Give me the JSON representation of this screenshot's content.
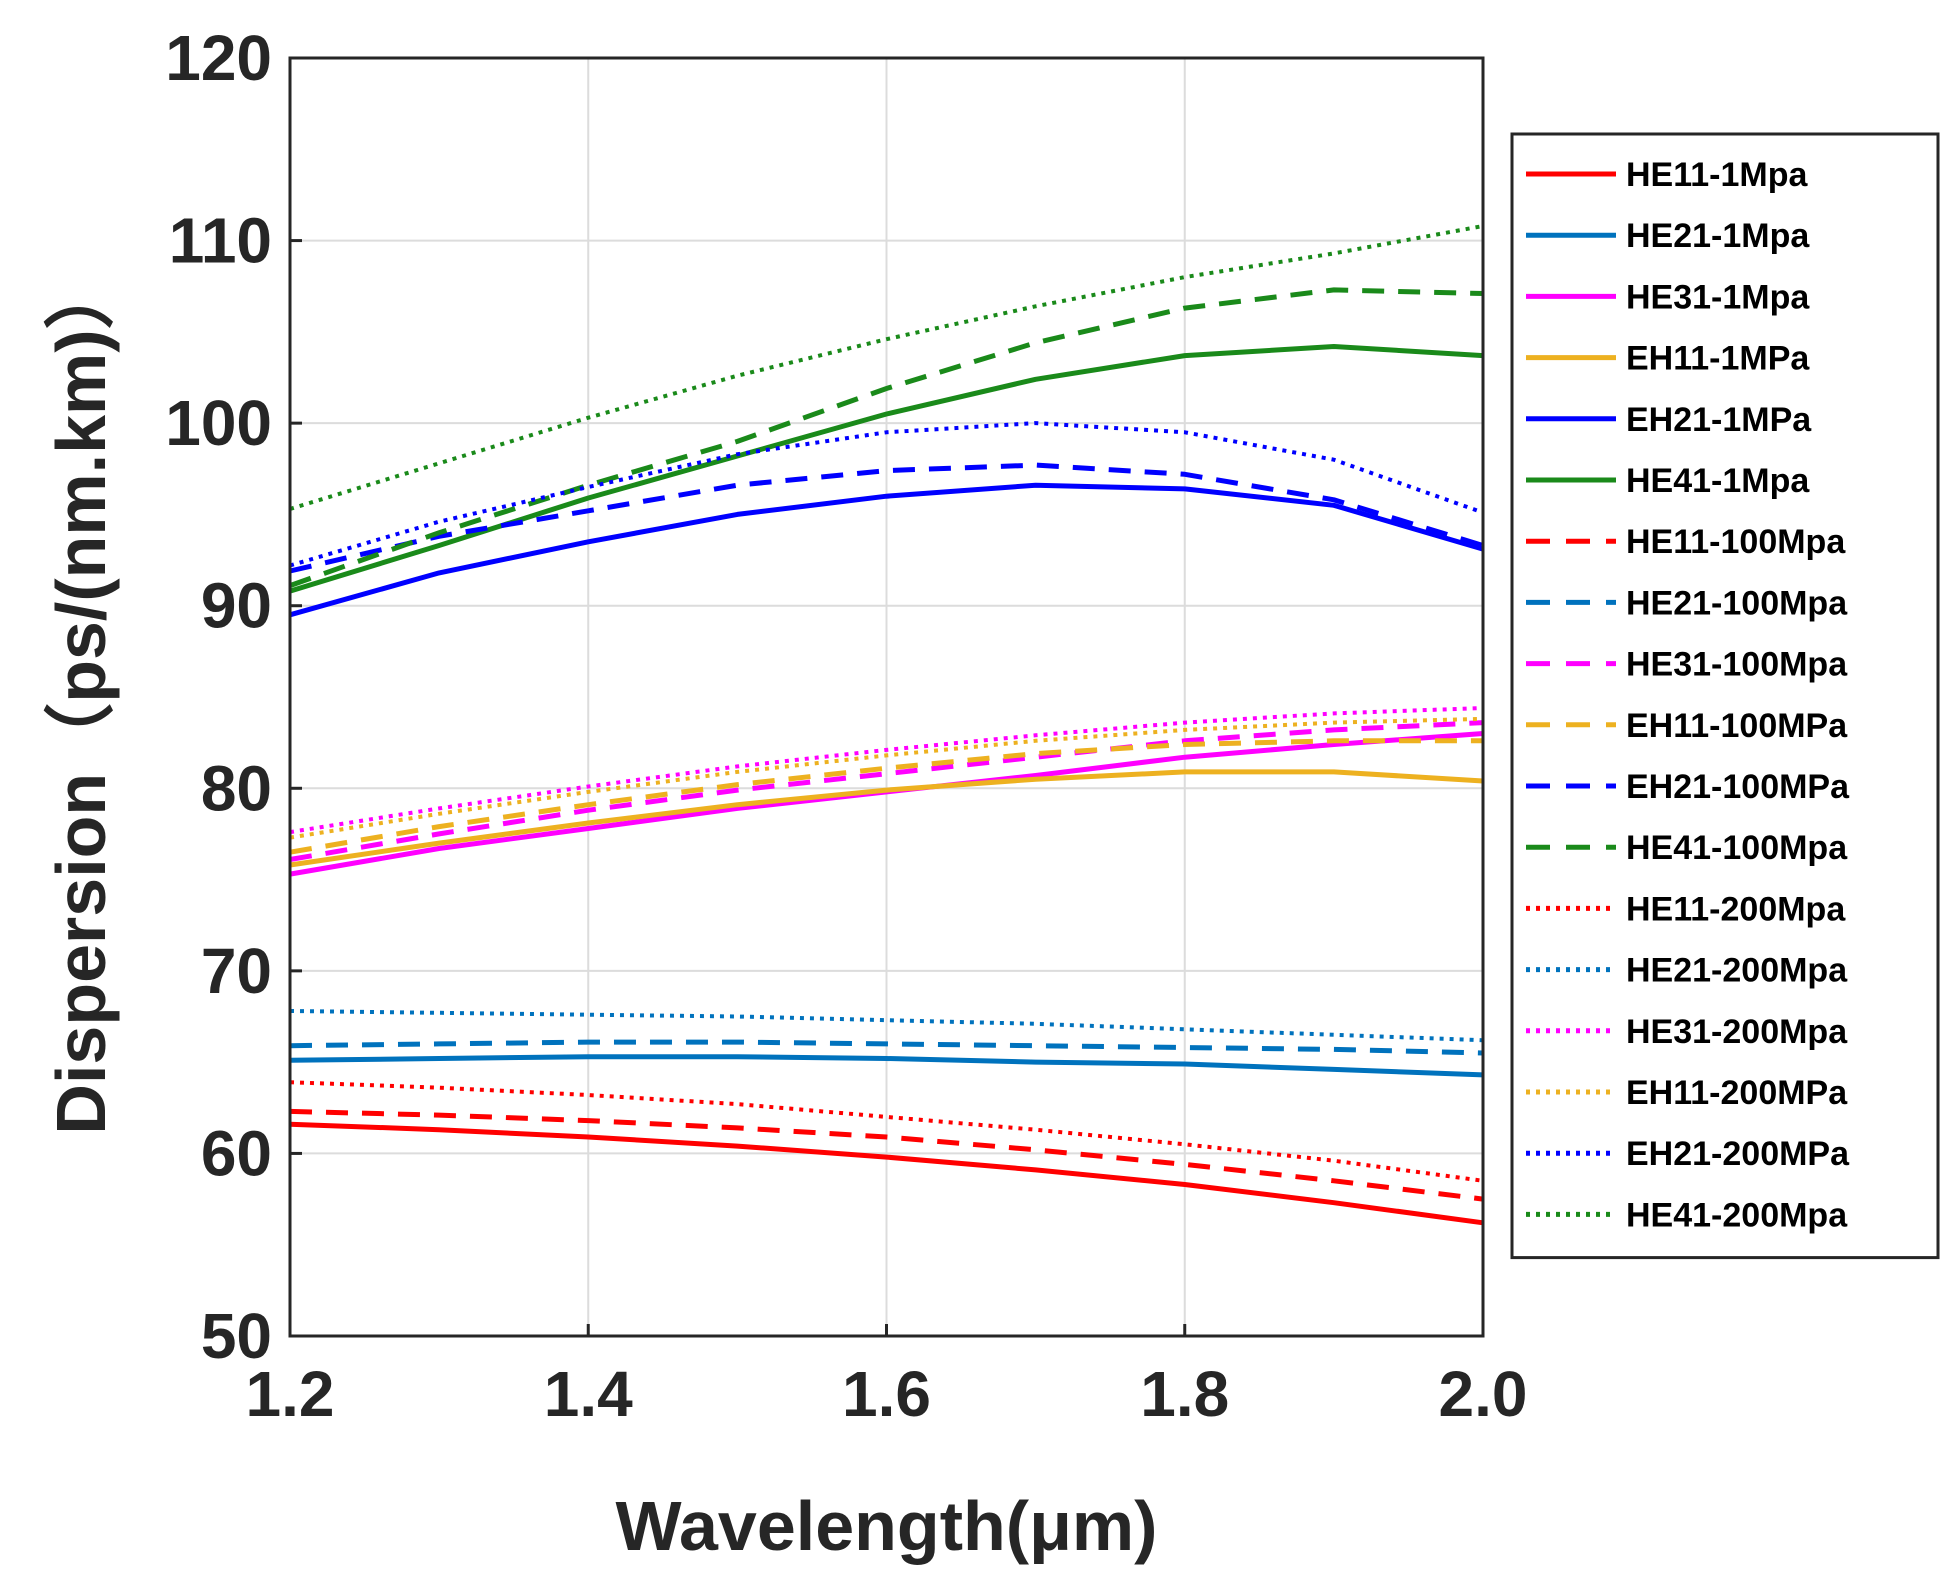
{
  "chart_data": {
    "type": "line",
    "title": "",
    "xlabel": "Wavelength(μm)",
    "ylabel": "Dispersion（ps/(nm.km)）",
    "xlim": [
      1.2,
      2.0
    ],
    "ylim": [
      50,
      120
    ],
    "x_ticks": [
      "1.2",
      "1.4",
      "1.6",
      "1.8",
      "2.0"
    ],
    "y_ticks": [
      "50",
      "60",
      "70",
      "80",
      "90",
      "100",
      "110",
      "120"
    ],
    "grid": true,
    "legend_position": "outside-right",
    "x": [
      1.2,
      1.3,
      1.4,
      1.5,
      1.6,
      1.7,
      1.8,
      1.9,
      2.0
    ],
    "series": [
      {
        "name": "HE11-1Mpa",
        "color": "#ff0000",
        "style": "solid",
        "values": [
          61.6,
          61.3,
          60.9,
          60.4,
          59.8,
          59.1,
          58.3,
          57.3,
          56.2
        ]
      },
      {
        "name": "HE21-1Mpa",
        "color": "#0072bd",
        "style": "solid",
        "values": [
          65.1,
          65.2,
          65.3,
          65.3,
          65.2,
          65.0,
          64.9,
          64.6,
          64.3
        ]
      },
      {
        "name": "HE31-1Mpa",
        "color": "#ff00ff",
        "style": "solid",
        "values": [
          75.3,
          76.7,
          77.8,
          78.9,
          79.8,
          80.7,
          81.7,
          82.4,
          83.0
        ]
      },
      {
        "name": "EH11-1MPa",
        "color": "#edb120",
        "style": "solid",
        "values": [
          75.8,
          77.0,
          78.1,
          79.1,
          79.9,
          80.5,
          80.9,
          80.9,
          80.4
        ]
      },
      {
        "name": "EH21-1MPa",
        "color": "#0000ff",
        "style": "solid",
        "values": [
          89.5,
          91.8,
          93.5,
          95.0,
          96.0,
          96.6,
          96.4,
          95.5,
          93.1
        ]
      },
      {
        "name": "HE41-1Mpa",
        "color": "#1a8a1a",
        "style": "solid",
        "values": [
          90.8,
          93.3,
          95.9,
          98.2,
          100.5,
          102.4,
          103.7,
          104.2,
          103.7
        ]
      },
      {
        "name": "HE11-100Mpa",
        "color": "#ff0000",
        "style": "dashed",
        "values": [
          62.3,
          62.1,
          61.8,
          61.4,
          60.9,
          60.2,
          59.4,
          58.5,
          57.5
        ]
      },
      {
        "name": "HE21-100Mpa",
        "color": "#0072bd",
        "style": "dashed",
        "values": [
          65.9,
          66.0,
          66.1,
          66.1,
          66.0,
          65.9,
          65.8,
          65.7,
          65.5
        ]
      },
      {
        "name": "HE31-100Mpa",
        "color": "#ff00ff",
        "style": "dashed",
        "values": [
          76.1,
          77.5,
          78.8,
          79.9,
          80.8,
          81.7,
          82.6,
          83.2,
          83.6
        ]
      },
      {
        "name": "EH11-100MPa",
        "color": "#edb120",
        "style": "dashed",
        "values": [
          76.5,
          77.9,
          79.1,
          80.2,
          81.1,
          81.9,
          82.4,
          82.6,
          82.6
        ]
      },
      {
        "name": "EH21-100MPa",
        "color": "#0000ff",
        "style": "dashed",
        "values": [
          91.9,
          93.8,
          95.2,
          96.6,
          97.4,
          97.7,
          97.2,
          95.8,
          93.3
        ]
      },
      {
        "name": "HE41-100Mpa",
        "color": "#1a8a1a",
        "style": "dashed",
        "values": [
          91.1,
          94.0,
          96.6,
          99.0,
          101.9,
          104.4,
          106.3,
          107.3,
          107.1
        ]
      },
      {
        "name": "HE11-200Mpa",
        "color": "#ff0000",
        "style": "dotted",
        "values": [
          63.9,
          63.6,
          63.2,
          62.7,
          62.0,
          61.3,
          60.5,
          59.6,
          58.5
        ]
      },
      {
        "name": "HE21-200Mpa",
        "color": "#0072bd",
        "style": "dotted",
        "values": [
          67.8,
          67.7,
          67.6,
          67.5,
          67.3,
          67.1,
          66.8,
          66.5,
          66.2
        ]
      },
      {
        "name": "HE31-200Mpa",
        "color": "#ff00ff",
        "style": "dotted",
        "values": [
          77.6,
          78.9,
          80.1,
          81.2,
          82.1,
          82.9,
          83.6,
          84.1,
          84.4
        ]
      },
      {
        "name": "EH11-200MPa",
        "color": "#edb120",
        "style": "dotted",
        "values": [
          77.3,
          78.6,
          79.8,
          80.9,
          81.8,
          82.6,
          83.2,
          83.6,
          83.8
        ]
      },
      {
        "name": "EH21-200MPa",
        "color": "#0000ff",
        "style": "dotted",
        "values": [
          92.2,
          94.6,
          96.5,
          98.3,
          99.5,
          100.0,
          99.5,
          98.0,
          95.1
        ]
      },
      {
        "name": "HE41-200Mpa",
        "color": "#1a8a1a",
        "style": "dotted",
        "values": [
          95.3,
          97.8,
          100.3,
          102.6,
          104.6,
          106.4,
          108.0,
          109.3,
          110.8
        ]
      }
    ]
  }
}
